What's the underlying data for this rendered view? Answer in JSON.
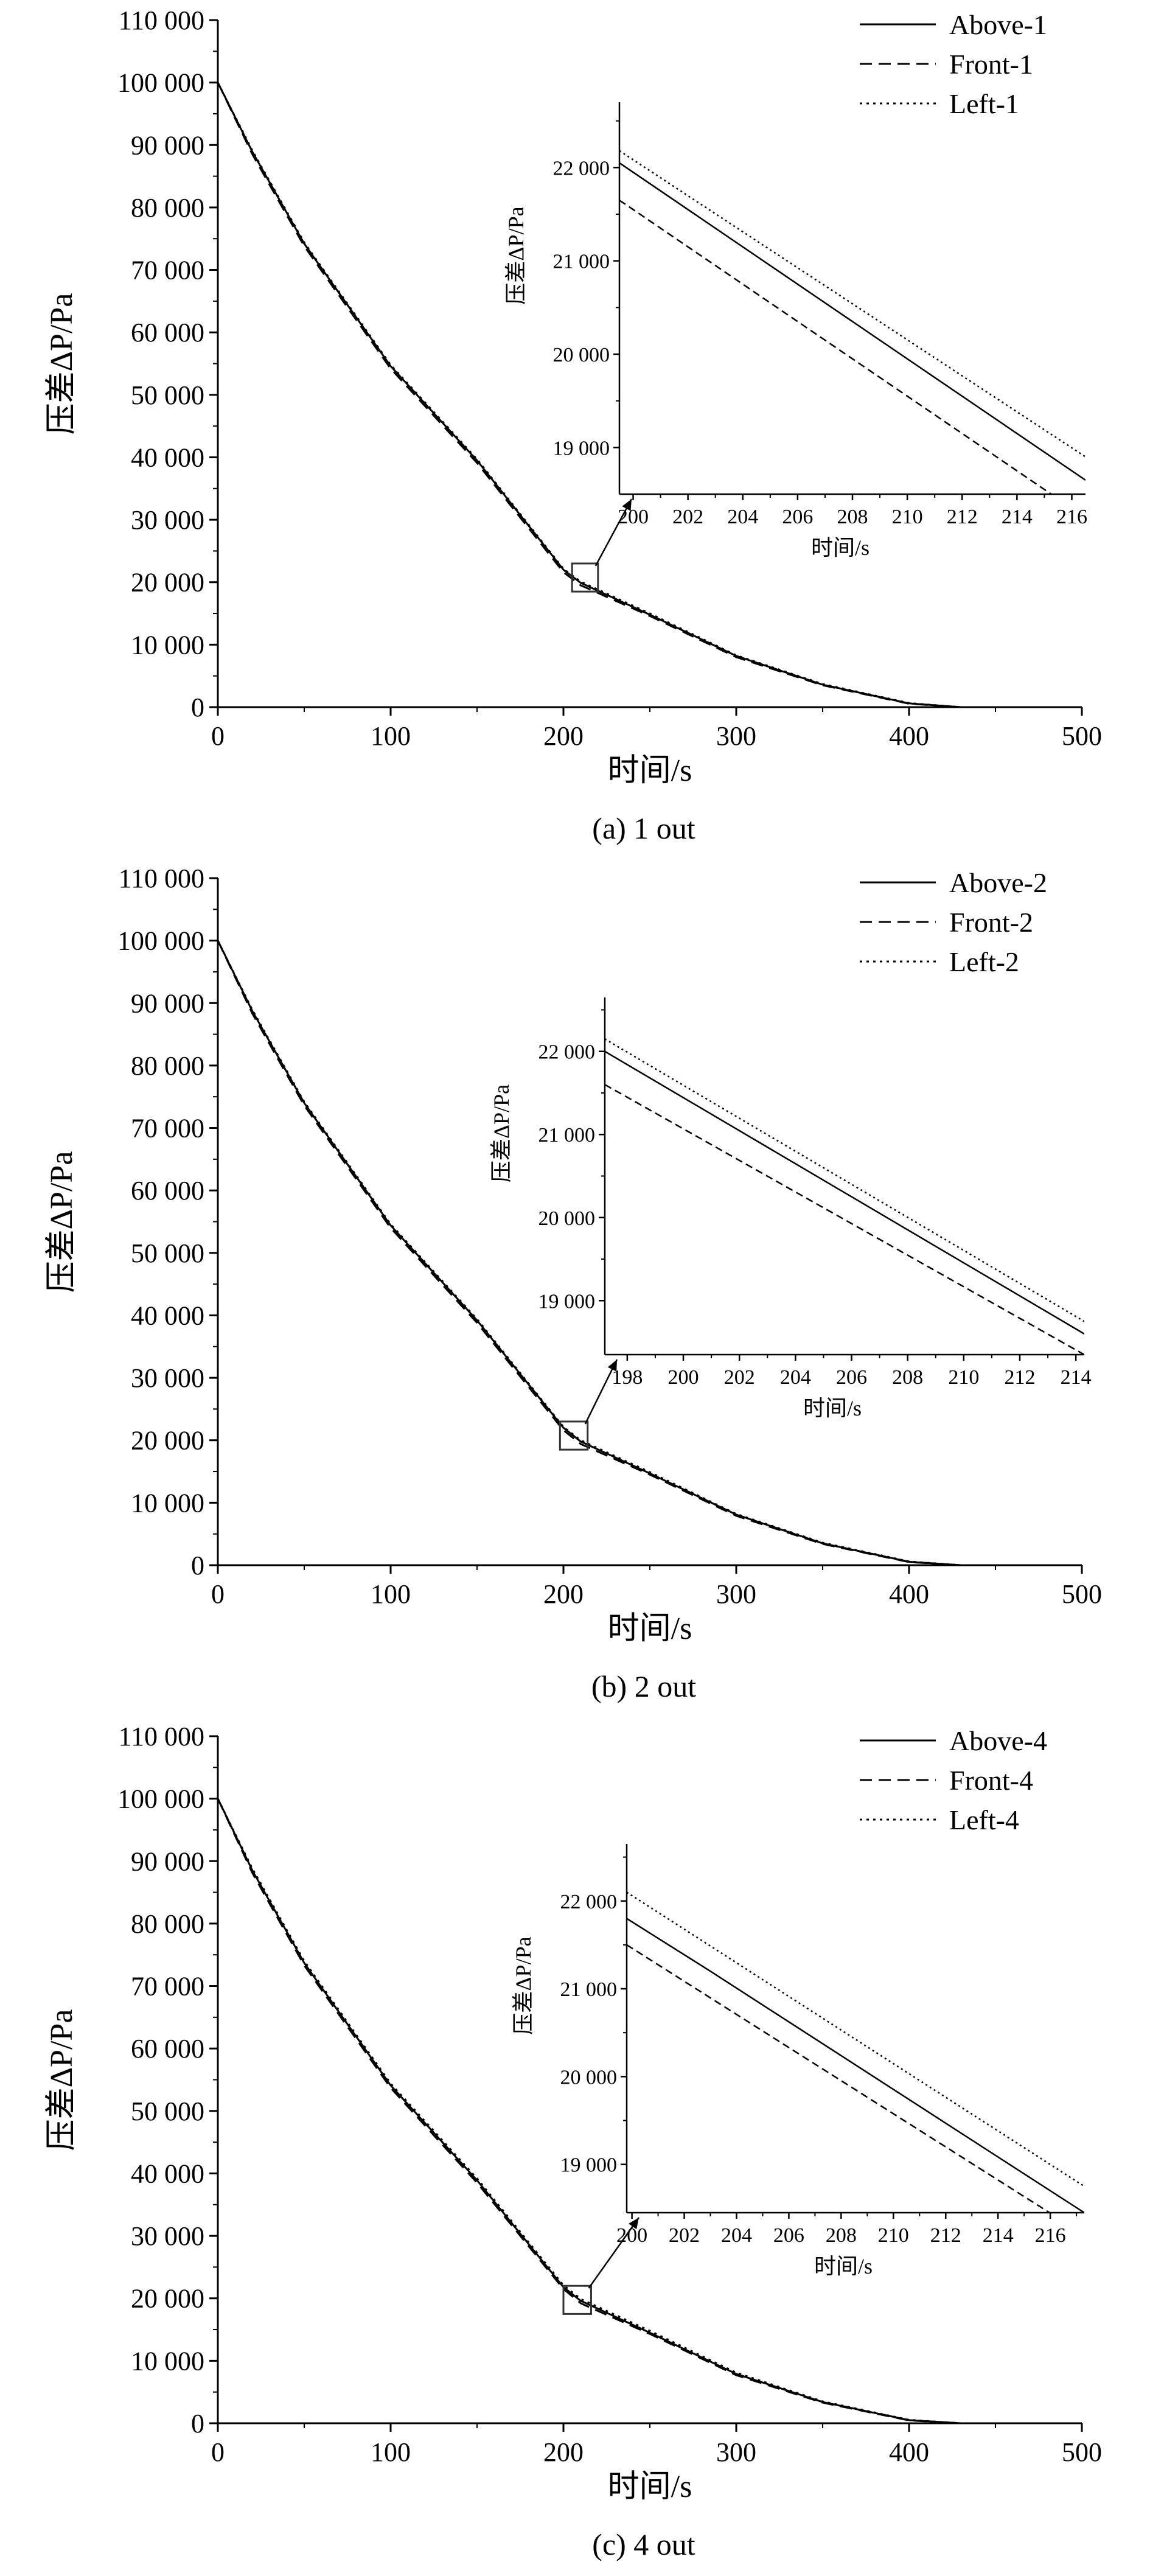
{
  "chart_data": [
    {
      "type": "line",
      "caption": "(a) 1 out",
      "xlabel": "时间/s",
      "ylabel": "压差ΔP/Pa",
      "xlim": [
        0,
        500
      ],
      "ylim": [
        0,
        110000
      ],
      "x_ticks": [
        0,
        100,
        200,
        300,
        400,
        500
      ],
      "y_ticks": [
        0,
        10000,
        20000,
        30000,
        40000,
        50000,
        60000,
        70000,
        80000,
        90000,
        100000,
        110000
      ],
      "x_tick_labels": [
        "0",
        "100",
        "200",
        "300",
        "400",
        "500"
      ],
      "y_tick_labels": [
        "0",
        "10 000",
        "20 000",
        "30 000",
        "40 000",
        "50 000",
        "60 000",
        "70 000",
        "80 000",
        "90 000",
        "100 000",
        "110 000"
      ],
      "legend_position": "top-right",
      "series": [
        {
          "name": "Above-1",
          "style": "solid",
          "x": [
            0,
            20,
            50,
            100,
            150,
            200,
            210,
            250,
            300,
            350,
            400,
            430,
            500
          ],
          "values": [
            100000,
            88900,
            74200,
            54600,
            39500,
            22000,
            19900,
            14800,
            8200,
            3600,
            600,
            0,
            0
          ]
        },
        {
          "name": "Front-1",
          "style": "dashed",
          "x": [
            0,
            20,
            50,
            100,
            150,
            200,
            210,
            250,
            300,
            350,
            400,
            430,
            500
          ],
          "values": [
            100000,
            88500,
            73800,
            54200,
            39100,
            21600,
            19500,
            14600,
            8000,
            3500,
            550,
            0,
            0
          ]
        },
        {
          "name": "Left-1",
          "style": "dotted",
          "x": [
            0,
            20,
            50,
            100,
            150,
            200,
            210,
            250,
            300,
            350,
            400,
            430,
            500
          ],
          "values": [
            100000,
            89100,
            74400,
            54800,
            39700,
            22150,
            20100,
            15000,
            8300,
            3700,
            650,
            0,
            0
          ]
        }
      ],
      "zoom_box": {
        "x": [
          205,
          220
        ],
        "y": [
          18500,
          23000
        ]
      },
      "inset": {
        "xlabel": "时间/s",
        "ylabel": "压差ΔP/Pa",
        "xlim": [
          199.5,
          216.5
        ],
        "ylim": [
          18500,
          22700
        ],
        "x_ticks": [
          200,
          202,
          204,
          206,
          208,
          210,
          212,
          214,
          216
        ],
        "x_tick_labels": [
          "200",
          "202",
          "204",
          "206",
          "208",
          "210",
          "212",
          "214",
          "216"
        ],
        "y_ticks": [
          19000,
          20000,
          21000,
          22000
        ],
        "y_tick_labels": [
          "19 000",
          "20 000",
          "21 000",
          "22 000"
        ],
        "series": [
          {
            "name": "Above-1",
            "style": "solid",
            "x": [
              199.5,
              216.5
            ],
            "values": [
              22050,
              18650
            ]
          },
          {
            "name": "Front-1",
            "style": "dashed",
            "x": [
              199.5,
              216.5
            ],
            "values": [
              21650,
              18250
            ]
          },
          {
            "name": "Left-1",
            "style": "dotted",
            "x": [
              199.5,
              216.5
            ],
            "values": [
              22180,
              18900
            ]
          }
        ]
      }
    },
    {
      "type": "line",
      "caption": "(b) 2 out",
      "xlabel": "时间/s",
      "ylabel": "压差ΔP/Pa",
      "xlim": [
        0,
        500
      ],
      "ylim": [
        0,
        110000
      ],
      "x_ticks": [
        0,
        100,
        200,
        300,
        400,
        500
      ],
      "y_ticks": [
        0,
        10000,
        20000,
        30000,
        40000,
        50000,
        60000,
        70000,
        80000,
        90000,
        100000,
        110000
      ],
      "x_tick_labels": [
        "0",
        "100",
        "200",
        "300",
        "400",
        "500"
      ],
      "y_tick_labels": [
        "0",
        "10 000",
        "20 000",
        "30 000",
        "40 000",
        "50 000",
        "60 000",
        "70 000",
        "80 000",
        "90 000",
        "100 000",
        "110 000"
      ],
      "legend_position": "top-right",
      "series": [
        {
          "name": "Above-2",
          "style": "solid",
          "x": [
            0,
            20,
            50,
            100,
            150,
            200,
            210,
            250,
            300,
            350,
            400,
            430,
            500
          ],
          "values": [
            100000,
            88700,
            74000,
            54400,
            39200,
            22000,
            19800,
            14700,
            8100,
            3500,
            550,
            0,
            0
          ]
        },
        {
          "name": "Front-2",
          "style": "dashed",
          "x": [
            0,
            20,
            50,
            100,
            150,
            200,
            210,
            250,
            300,
            350,
            400,
            430,
            500
          ],
          "values": [
            100000,
            88300,
            73600,
            54000,
            38800,
            21600,
            19400,
            14500,
            7900,
            3400,
            500,
            0,
            0
          ]
        },
        {
          "name": "Left-2",
          "style": "dotted",
          "x": [
            0,
            20,
            50,
            100,
            150,
            200,
            210,
            250,
            300,
            350,
            400,
            430,
            500
          ],
          "values": [
            100000,
            88900,
            74200,
            54600,
            39400,
            22150,
            20000,
            14900,
            8200,
            3600,
            600,
            0,
            0
          ]
        }
      ],
      "zoom_box": {
        "x": [
          198,
          214
        ],
        "y": [
          18500,
          23000
        ]
      },
      "inset": {
        "xlabel": "时间/s",
        "ylabel": "压差ΔP/Pa",
        "xlim": [
          197.2,
          214.3
        ],
        "ylim": [
          18350,
          22650
        ],
        "x_ticks": [
          198,
          200,
          202,
          204,
          206,
          208,
          210,
          212,
          214
        ],
        "x_tick_labels": [
          "198",
          "200",
          "202",
          "204",
          "206",
          "208",
          "210",
          "212",
          "214"
        ],
        "y_ticks": [
          19000,
          20000,
          21000,
          22000
        ],
        "y_tick_labels": [
          "19 000",
          "20 000",
          "21 000",
          "22 000"
        ],
        "series": [
          {
            "name": "Above-2",
            "style": "solid",
            "x": [
              197.2,
              214.3
            ],
            "values": [
              22000,
              18600
            ]
          },
          {
            "name": "Front-2",
            "style": "dashed",
            "x": [
              197.2,
              214.3
            ],
            "values": [
              21600,
              18350
            ]
          },
          {
            "name": "Left-2",
            "style": "dotted",
            "x": [
              197.2,
              214.3
            ],
            "values": [
              22150,
              18750
            ]
          }
        ]
      }
    },
    {
      "type": "line",
      "caption": "(c) 4 out",
      "xlabel": "时间/s",
      "ylabel": "压差ΔP/Pa",
      "xlim": [
        0,
        500
      ],
      "ylim": [
        0,
        110000
      ],
      "x_ticks": [
        0,
        100,
        200,
        300,
        400,
        500
      ],
      "y_ticks": [
        0,
        10000,
        20000,
        30000,
        40000,
        50000,
        60000,
        70000,
        80000,
        90000,
        100000,
        110000
      ],
      "x_tick_labels": [
        "0",
        "100",
        "200",
        "300",
        "400",
        "500"
      ],
      "y_tick_labels": [
        "0",
        "10 000",
        "20 000",
        "30 000",
        "40 000",
        "50 000",
        "60 000",
        "70 000",
        "80 000",
        "90 000",
        "100 000",
        "110 000"
      ],
      "legend_position": "top-right",
      "series": [
        {
          "name": "Above-4",
          "style": "solid",
          "x": [
            0,
            20,
            50,
            100,
            150,
            200,
            210,
            250,
            300,
            350,
            400,
            430,
            500
          ],
          "values": [
            100000,
            88500,
            73700,
            54100,
            38900,
            21800,
            19600,
            14500,
            7900,
            3400,
            500,
            0,
            0
          ]
        },
        {
          "name": "Front-4",
          "style": "dashed",
          "x": [
            0,
            20,
            50,
            100,
            150,
            200,
            210,
            250,
            300,
            350,
            400,
            430,
            500
          ],
          "values": [
            100000,
            88100,
            73300,
            53700,
            38500,
            21500,
            19200,
            14300,
            7700,
            3300,
            450,
            0,
            0
          ]
        },
        {
          "name": "Left-4",
          "style": "dotted",
          "x": [
            0,
            20,
            50,
            100,
            150,
            200,
            210,
            250,
            300,
            350,
            400,
            430,
            500
          ],
          "values": [
            100000,
            88800,
            74000,
            54400,
            39200,
            22100,
            19900,
            14800,
            8100,
            3500,
            550,
            0,
            0
          ]
        }
      ],
      "zoom_box": {
        "x": [
          200,
          216
        ],
        "y": [
          17500,
          22000
        ]
      },
      "inset": {
        "xlabel": "时间/s",
        "ylabel": "压差ΔP/Pa",
        "xlim": [
          199.8,
          217.3
        ],
        "ylim": [
          18450,
          22650
        ],
        "x_ticks": [
          200,
          202,
          204,
          206,
          208,
          210,
          212,
          214,
          216
        ],
        "x_tick_labels": [
          "200",
          "202",
          "204",
          "206",
          "208",
          "210",
          "212",
          "214",
          "216"
        ],
        "y_ticks": [
          19000,
          20000,
          21000,
          22000
        ],
        "y_tick_labels": [
          "19 000",
          "20 000",
          "21 000",
          "22 000"
        ],
        "series": [
          {
            "name": "Above-4",
            "style": "solid",
            "x": [
              199.8,
              203,
              217.3
            ],
            "values": [
              21800,
              21200,
              18450
            ]
          },
          {
            "name": "Front-4",
            "style": "dashed",
            "x": [
              199.8,
              217.3
            ],
            "values": [
              21500,
              18200
            ]
          },
          {
            "name": "Left-4",
            "style": "dotted",
            "x": [
              199.8,
              217.3
            ],
            "values": [
              22100,
              18750
            ]
          }
        ]
      }
    }
  ]
}
